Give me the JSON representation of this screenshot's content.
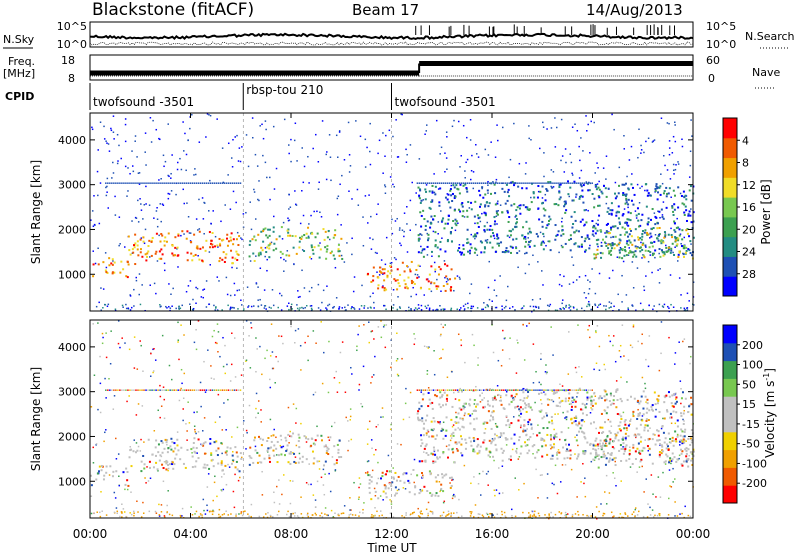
{
  "header": {
    "station": "Blackstone (fitACF)",
    "beam": "Beam 17",
    "date": "14/Aug/2013"
  },
  "top_panels": {
    "nsky_label": "N.Sky",
    "nsky_ticks": [
      "10^5",
      "10^0"
    ],
    "nsearch_label": "N.Search",
    "nsearch_ticks": [
      "10^5",
      "10^0"
    ],
    "freq_label_1": "Freq.",
    "freq_label_2": "[MHz]",
    "freq_ticks": [
      "18",
      "8"
    ],
    "nave_label": "Nave",
    "nave_ticks": [
      "60",
      "0"
    ],
    "cpid_label": "CPID",
    "cpid_segments": [
      {
        "name": "twofsound -3501",
        "start": 0,
        "end": 6.1
      },
      {
        "name": "rbsp-tou 210",
        "start": 6.1,
        "end": 12.0
      },
      {
        "name": "twofsound -3501",
        "start": 12.0,
        "end": 24.0
      }
    ],
    "freq_series": [
      {
        "start": 0,
        "end": 13.1,
        "value": 10.8
      },
      {
        "start": 13.1,
        "end": 24,
        "value": 14.6
      }
    ]
  },
  "chart_data": [
    {
      "type": "heatmap",
      "title": "",
      "xlabel": "",
      "ylabel": "Slant Range [km]",
      "xlim": [
        0,
        24
      ],
      "ylim": [
        180,
        4600
      ],
      "yticks": [
        1000,
        2000,
        3000,
        4000
      ],
      "ytick_labels": [
        "1000",
        "2000",
        "3000",
        "4000"
      ],
      "colorbar": {
        "label": "Power [dB]",
        "ticks": [
          "4",
          "8",
          "12",
          "16",
          "20",
          "24",
          "28"
        ],
        "range": [
          0,
          30
        ],
        "colors": [
          "#0000ff",
          "#1e50b4",
          "#238c82",
          "#3ca050",
          "#78c850",
          "#f0dc28",
          "#f0a000",
          "#f05a00",
          "#ff0000"
        ]
      },
      "bands": [
        {
          "x0": 0.0,
          "x1": 1.5,
          "r0": 900,
          "r1": 1300,
          "level": "strong"
        },
        {
          "x0": 1.5,
          "x1": 6.0,
          "r0": 1200,
          "r1": 1900,
          "level": "strong"
        },
        {
          "x0": 6.3,
          "x1": 10.0,
          "r0": 1300,
          "r1": 2000,
          "level": "medium"
        },
        {
          "x0": 11.0,
          "x1": 14.5,
          "r0": 600,
          "r1": 1200,
          "level": "strong"
        },
        {
          "x0": 13.0,
          "x1": 24.0,
          "r0": 1400,
          "r1": 3000,
          "level": "weak"
        },
        {
          "x0": 20.0,
          "x1": 24.0,
          "r0": 1300,
          "r1": 2000,
          "level": "medium"
        }
      ]
    },
    {
      "type": "heatmap",
      "title": "",
      "xlabel": "Time UT",
      "ylabel": "Slant Range [km]",
      "xlim": [
        0,
        24
      ],
      "xticks": [
        0,
        4,
        8,
        12,
        16,
        20,
        24
      ],
      "xtick_labels": [
        "00:00",
        "04:00",
        "08:00",
        "12:00",
        "16:00",
        "20:00",
        "00:00"
      ],
      "ylim": [
        180,
        4600
      ],
      "yticks": [
        1000,
        2000,
        3000,
        4000
      ],
      "ytick_labels": [
        "1000",
        "2000",
        "3000",
        "4000"
      ],
      "colorbar": {
        "label_main": "Velocity [m s",
        "label_sup": "-1",
        "label_close": "]",
        "ticks": [
          "200",
          "100",
          "50",
          "15",
          "-15",
          "-50",
          "-100",
          "-200"
        ],
        "range": [
          -250,
          250
        ],
        "colors": [
          "#ff0000",
          "#f05a00",
          "#f0a000",
          "#f0d000",
          "#c0c0c0",
          "#c0c0c0",
          "#78c850",
          "#3ca050",
          "#1e50b4",
          "#0000ff"
        ]
      }
    }
  ]
}
